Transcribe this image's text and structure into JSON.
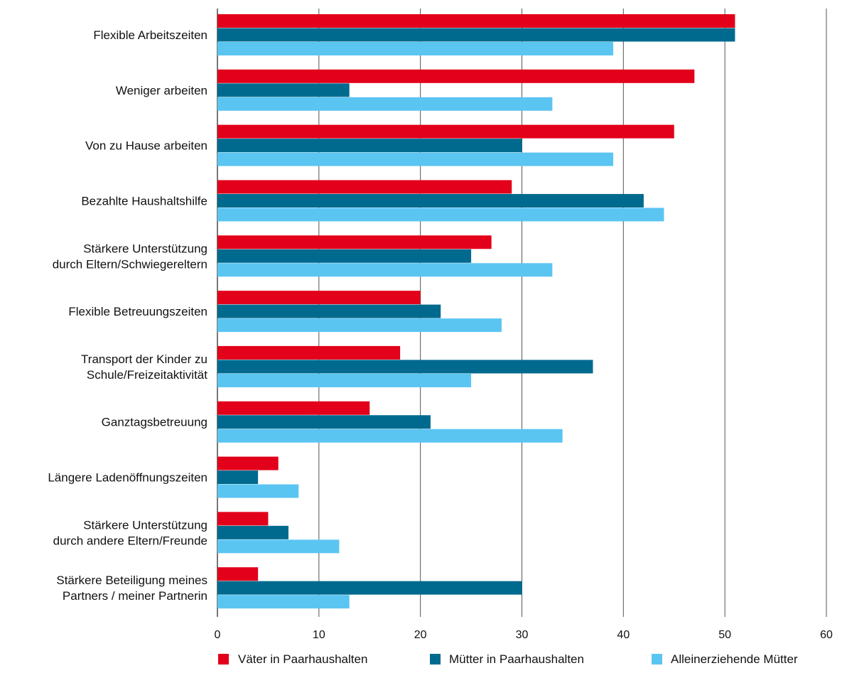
{
  "chart_data": {
    "type": "bar",
    "orientation": "horizontal",
    "title": "",
    "xlabel": "",
    "ylabel": "",
    "xlim": [
      0,
      60
    ],
    "xticks": [
      0,
      10,
      20,
      30,
      40,
      50,
      60
    ],
    "grid": "vertical",
    "legend_position": "bottom",
    "categories": [
      [
        "Flexible Arbeitszeiten"
      ],
      [
        "Weniger arbeiten"
      ],
      [
        "Von zu Hause arbeiten"
      ],
      [
        "Bezahlte Haushaltshilfe"
      ],
      [
        "Stärkere Unterstützung",
        "durch Eltern/Schwiegereltern"
      ],
      [
        "Flexible Betreuungszeiten"
      ],
      [
        "Transport der Kinder zu",
        "Schule/Freizeitaktivität"
      ],
      [
        "Ganztagsbetreuung"
      ],
      [
        "Längere Ladenöffnungszeiten"
      ],
      [
        "Stärkere Unterstützung",
        "durch andere Eltern/Freunde"
      ],
      [
        "Stärkere Beteiligung meines",
        "Partners / meiner Partnerin"
      ]
    ],
    "series": [
      {
        "name": "Väter in Paarhaushalten",
        "color": "#e2001a",
        "values": [
          51,
          47,
          45,
          29,
          27,
          20,
          18,
          15,
          6,
          5,
          4
        ]
      },
      {
        "name": "Mütter in Paarhaushalten",
        "color": "#006a8e",
        "values": [
          51,
          13,
          30,
          42,
          25,
          22,
          37,
          21,
          4,
          7,
          30
        ]
      },
      {
        "name": "Alleinerziehende Mütter",
        "color": "#5bc5f2",
        "values": [
          39,
          33,
          39,
          44,
          33,
          28,
          25,
          34,
          8,
          12,
          13
        ]
      }
    ]
  }
}
